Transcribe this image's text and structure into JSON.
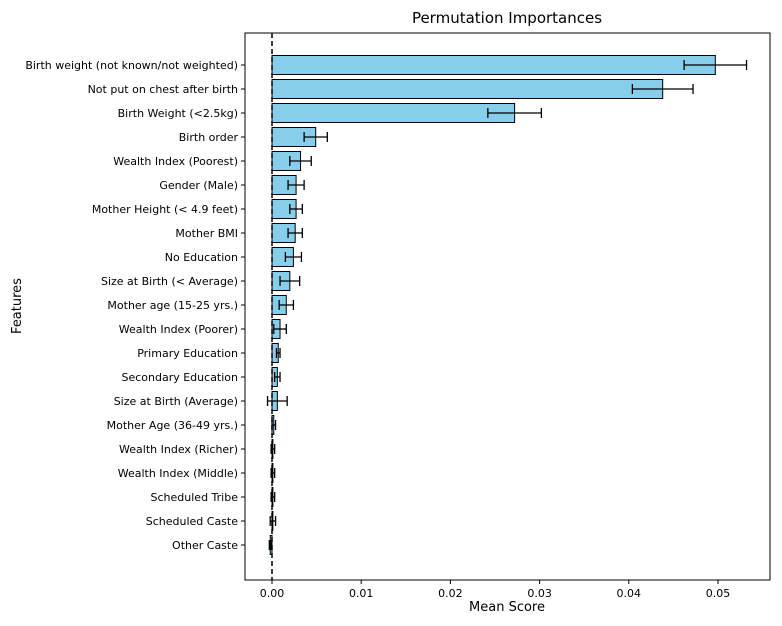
{
  "chart_data": {
    "type": "bar",
    "orientation": "horizontal",
    "title": "Permutation Importances",
    "xlabel": "Mean Score",
    "ylabel": "Features",
    "xlim": [
      -0.003,
      0.056
    ],
    "xticks": [
      0.0,
      0.01,
      0.02,
      0.03,
      0.04,
      0.05
    ],
    "xtick_labels": [
      "0.00",
      "0.01",
      "0.02",
      "0.03",
      "0.04",
      "0.05"
    ],
    "bar_color": "#87CEEB",
    "edge_color": "#000000",
    "reference_line": {
      "x": 0.0,
      "style": "dashed"
    },
    "categories": [
      "Birth weight (not known/not weighted)",
      "Not put on chest after birth",
      "Birth Weight (<2.5kg)",
      "Birth order",
      "Wealth Index (Poorest)",
      "Gender (Male)",
      "Mother Height (< 4.9 feet)",
      "Mother BMI",
      "No Education",
      "Size at Birth (< Average)",
      "Mother age (15-25 yrs.)",
      "Wealth Index (Poorer)",
      "Primary Education",
      "Secondary Education",
      "Size at Birth (Average)",
      "Mother Age (36-49 yrs.)",
      "Wealth Index (Richer)",
      "Wealth Index (Middle)",
      "Scheduled Tribe",
      "Scheduled Caste",
      "Other Caste"
    ],
    "values": [
      0.0497,
      0.0438,
      0.0272,
      0.0049,
      0.0032,
      0.0027,
      0.0027,
      0.0026,
      0.0024,
      0.002,
      0.0016,
      0.0009,
      0.0007,
      0.0006,
      0.0006,
      0.0002,
      0.0001,
      0.0001,
      0.0001,
      0.0001,
      -0.0002
    ],
    "errors": [
      0.0035,
      0.0034,
      0.003,
      0.0013,
      0.0012,
      0.0009,
      0.0007,
      0.0008,
      0.0009,
      0.0011,
      0.0008,
      0.0007,
      0.0002,
      0.0003,
      0.0011,
      0.0002,
      0.0002,
      0.0002,
      0.0002,
      0.0003,
      0.0001
    ]
  }
}
